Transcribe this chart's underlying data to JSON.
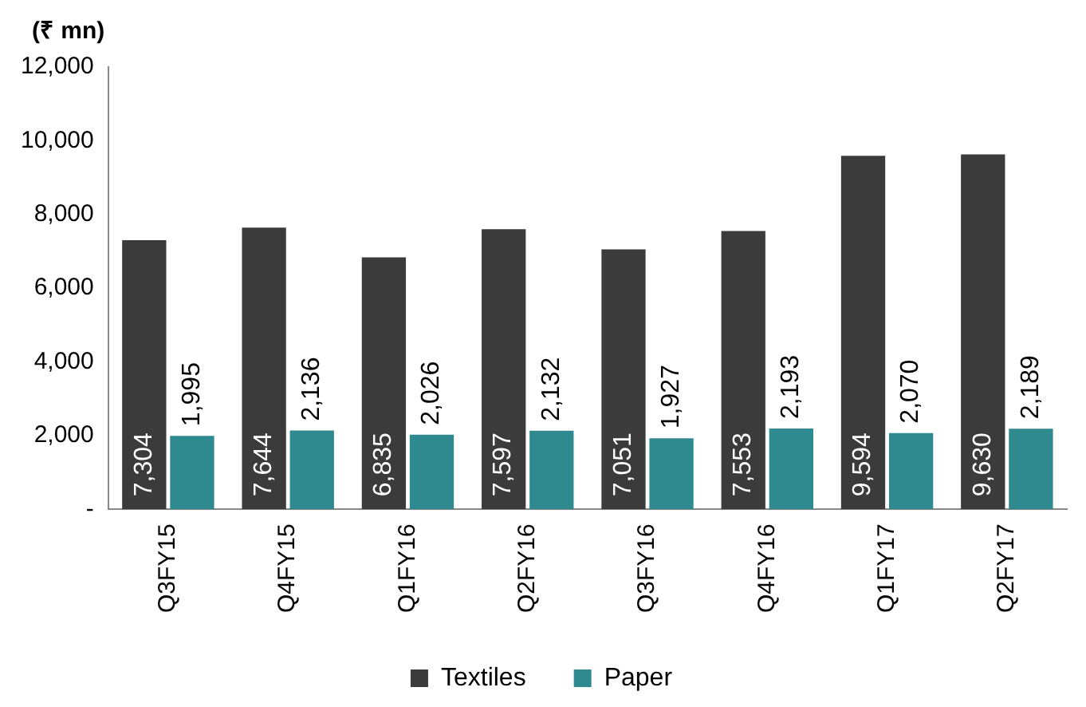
{
  "chart_data": {
    "type": "bar",
    "ylabel": "(₹ mn)",
    "categories": [
      "Q3FY15",
      "Q4FY15",
      "Q1FY16",
      "Q2FY16",
      "Q3FY16",
      "Q4FY16",
      "Q1FY17",
      "Q2FY17"
    ],
    "series": [
      {
        "name": "Textiles",
        "color": "#3b3b3b",
        "values": [
          7304,
          7644,
          6835,
          7597,
          7051,
          7553,
          9594,
          9630
        ],
        "value_labels": [
          "7,304",
          "7,644",
          "6,835",
          "7,597",
          "7,051",
          "7,553",
          "9,594",
          "9,630"
        ]
      },
      {
        "name": "Paper",
        "color": "#2e8a8f",
        "values": [
          1995,
          2136,
          2026,
          2132,
          1927,
          2193,
          2070,
          2189
        ],
        "value_labels": [
          "1,995",
          "2,136",
          "2,026",
          "2,132",
          "1,927",
          "2,193",
          "2,070",
          "2,189"
        ]
      }
    ],
    "ylim": [
      0,
      12000
    ],
    "yticks": [
      {
        "value": 0,
        "label": "-"
      },
      {
        "value": 2000,
        "label": "2,000"
      },
      {
        "value": 4000,
        "label": "4,000"
      },
      {
        "value": 6000,
        "label": "6,000"
      },
      {
        "value": 8000,
        "label": "8,000"
      },
      {
        "value": 10000,
        "label": "10,000"
      },
      {
        "value": 12000,
        "label": "12,000"
      }
    ],
    "grid": false,
    "legend": "bottom"
  }
}
